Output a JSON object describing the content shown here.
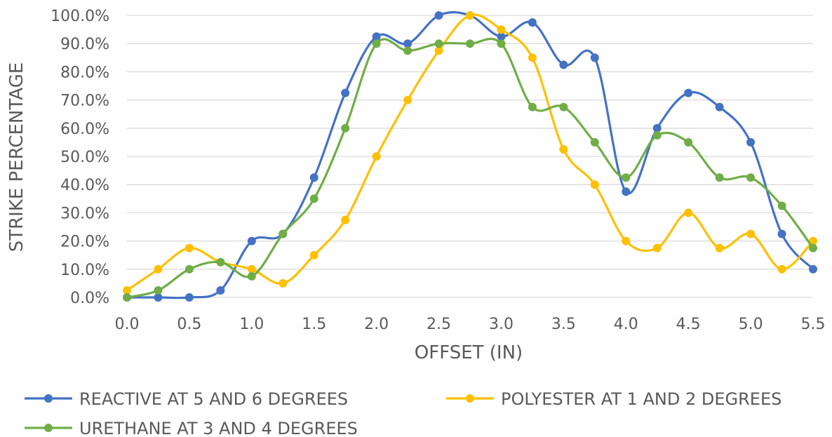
{
  "chart_data": {
    "type": "line",
    "title": "",
    "xlabel": "OFFSET (IN)",
    "ylabel": "STRIKE PERCENTAGE",
    "x": [
      0.0,
      0.25,
      0.5,
      0.75,
      1.0,
      1.25,
      1.5,
      1.75,
      2.0,
      2.25,
      2.5,
      2.75,
      3.0,
      3.25,
      3.5,
      3.75,
      4.0,
      4.25,
      4.5,
      4.75,
      5.0,
      5.25,
      5.5
    ],
    "xlim": [
      0,
      5.5
    ],
    "ylim": [
      0,
      100
    ],
    "x_ticks": [
      "0.0",
      "0.5",
      "1.0",
      "1.5",
      "2.0",
      "2.5",
      "3.0",
      "3.5",
      "4.0",
      "4.5",
      "5.0",
      "5.5"
    ],
    "y_ticks": [
      "0.0%",
      "10.0%",
      "20.0%",
      "30.0%",
      "40.0%",
      "50.0%",
      "60.0%",
      "70.0%",
      "80.0%",
      "90.0%",
      "100.0%"
    ],
    "grid": "horizontal",
    "smooth": true,
    "legend_position": "bottom",
    "series": [
      {
        "name": "REACTIVE AT 5 AND 6 DEGREES",
        "color": "#4472C4",
        "values": [
          0,
          0,
          0,
          2.5,
          20,
          22.5,
          42.5,
          72.5,
          92.5,
          90,
          100,
          100,
          92.5,
          97.5,
          82.5,
          85,
          37.5,
          60,
          72.5,
          67.5,
          55,
          22.5,
          10
        ]
      },
      {
        "name": "POLYESTER AT 1 AND 2 DEGREES",
        "color": "#FFC000",
        "values": [
          2.5,
          10,
          17.5,
          12.5,
          10,
          5,
          15,
          27.5,
          50,
          70,
          87.5,
          100,
          95,
          85,
          52.5,
          40,
          20,
          17.5,
          30,
          17.5,
          22.5,
          10,
          20
        ]
      },
      {
        "name": "URETHANE AT 3 AND 4 DEGREES",
        "color": "#70AD47",
        "values": [
          0,
          2.5,
          10,
          12.5,
          7.5,
          22.5,
          35,
          60,
          90,
          87.5,
          90,
          90,
          90,
          67.5,
          67.5,
          55,
          42.5,
          57.5,
          55,
          42.5,
          42.5,
          32.5,
          17.5
        ]
      }
    ]
  }
}
